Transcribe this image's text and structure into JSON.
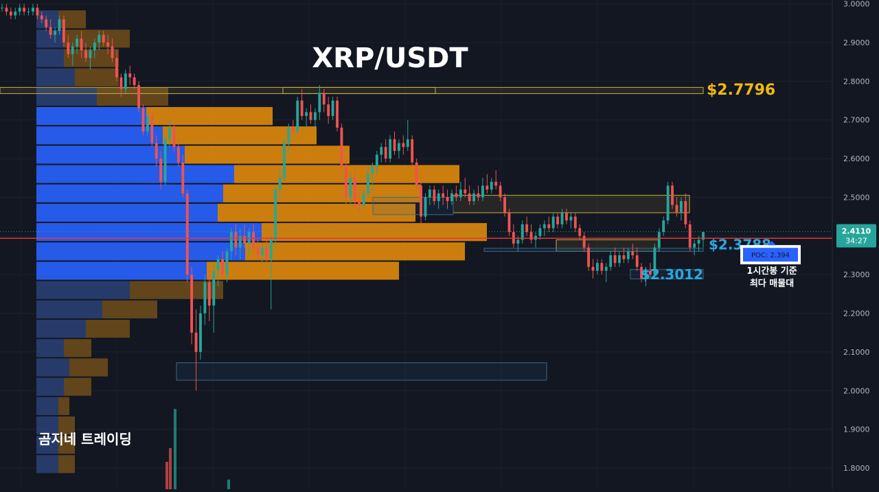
{
  "chart_data": {
    "type": "candlestick",
    "title": "XRP/USDT",
    "timeframe_note": "1시간봉 기준\n최다 매물대",
    "watermark": "곰지네 트레이딩",
    "y_axis": {
      "range": [
        1.745,
        3.01
      ],
      "ticks": [
        "3.0000",
        "2.9000",
        "2.8000",
        "2.7000",
        "2.6000",
        "2.5000",
        "2.4000",
        "2.3000",
        "2.2000",
        "2.1000",
        "2.0000",
        "1.9000",
        "1.8000"
      ]
    },
    "current_price": {
      "price": "2.4110",
      "countdown": "34:27",
      "value": 2.411,
      "color": "#26a69a"
    },
    "poc": {
      "label": "POC: 2.394",
      "value": 2.394,
      "color": "#e53935"
    },
    "levels": [
      {
        "label": "$2.7796",
        "value": 2.7796,
        "color": "#f0b90b"
      },
      {
        "label": "$2.3788",
        "value": 2.3788,
        "color": "#29a8e0"
      },
      {
        "label": "$2.3012",
        "value": 2.3012,
        "color": "#29a8e0"
      }
    ],
    "colors": {
      "up": "#26a69a",
      "down": "#ef5350",
      "profile_value_area_up": "#2962ff",
      "profile_value_area_down": "#e08a0b",
      "profile_outside_up": "#2a3f73",
      "profile_outside_down": "#6b4a1a",
      "background": "#131722"
    },
    "zones": [
      {
        "kind": "resistance",
        "top": 2.784,
        "bottom": 2.768,
        "color": "#c8b040"
      },
      {
        "kind": "resistance",
        "top": 2.505,
        "bottom": 2.46,
        "color": "#c8b040"
      },
      {
        "kind": "support",
        "top": 2.5,
        "bottom": 2.455,
        "color": "#3a6a8a"
      },
      {
        "kind": "resistance",
        "top": 2.39,
        "bottom": 2.36,
        "color": "#c8b040"
      },
      {
        "kind": "support",
        "top": 2.368,
        "bottom": 2.36,
        "color": "#3a6a8a"
      },
      {
        "kind": "support",
        "top": 2.313,
        "bottom": 2.289,
        "color": "#3a6a8a"
      },
      {
        "kind": "support",
        "top": 2.072,
        "bottom": 2.027,
        "color": "#3a6a8a"
      }
    ],
    "volume_profile": {
      "rows": [
        {
          "price": 2.96,
          "up": 0.04,
          "down": 0.05,
          "value_area": false
        },
        {
          "price": 2.91,
          "up": 0.05,
          "down": 0.12,
          "value_area": false
        },
        {
          "price": 2.86,
          "up": 0.05,
          "down": 0.1,
          "value_area": false
        },
        {
          "price": 2.81,
          "up": 0.07,
          "down": 0.08,
          "value_area": false
        },
        {
          "price": 2.76,
          "up": 0.11,
          "down": 0.13,
          "value_area": false
        },
        {
          "price": 2.71,
          "up": 0.2,
          "down": 0.23,
          "value_area": true
        },
        {
          "price": 2.66,
          "up": 0.23,
          "down": 0.28,
          "value_area": true
        },
        {
          "price": 2.61,
          "up": 0.27,
          "down": 0.3,
          "value_area": true
        },
        {
          "price": 2.56,
          "up": 0.36,
          "down": 0.41,
          "value_area": true
        },
        {
          "price": 2.51,
          "up": 0.34,
          "down": 0.36,
          "value_area": true
        },
        {
          "price": 2.46,
          "up": 0.33,
          "down": 0.36,
          "value_area": true
        },
        {
          "price": 2.41,
          "up": 0.41,
          "down": 0.41,
          "value_area": true
        },
        {
          "price": 2.36,
          "up": 0.38,
          "down": 0.4,
          "value_area": true
        },
        {
          "price": 2.31,
          "up": 0.31,
          "down": 0.35,
          "value_area": true
        },
        {
          "price": 2.26,
          "up": 0.17,
          "down": 0.17,
          "value_area": false
        },
        {
          "price": 2.21,
          "up": 0.12,
          "down": 0.1,
          "value_area": false
        },
        {
          "price": 2.16,
          "up": 0.09,
          "down": 0.08,
          "value_area": false
        },
        {
          "price": 2.11,
          "up": 0.05,
          "down": 0.05,
          "value_area": false
        },
        {
          "price": 2.06,
          "up": 0.06,
          "down": 0.07,
          "value_area": false
        },
        {
          "price": 2.01,
          "up": 0.05,
          "down": 0.05,
          "value_area": false
        },
        {
          "price": 1.96,
          "up": 0.04,
          "down": 0.02,
          "value_area": false
        },
        {
          "price": 1.91,
          "up": 0.04,
          "down": 0.03,
          "value_area": false
        },
        {
          "price": 1.86,
          "up": 0.04,
          "down": 0.03,
          "value_area": false
        },
        {
          "price": 1.81,
          "up": 0.04,
          "down": 0.03,
          "value_area": false
        }
      ]
    },
    "candles": [
      [
        2.99,
        3.0,
        2.98,
        2.99
      ],
      [
        2.99,
        3.0,
        2.97,
        2.98
      ],
      [
        2.98,
        2.99,
        2.96,
        2.97
      ],
      [
        2.97,
        2.99,
        2.96,
        2.98
      ],
      [
        2.98,
        3.0,
        2.97,
        2.99
      ],
      [
        2.99,
        3.0,
        2.97,
        2.98
      ],
      [
        2.98,
        2.99,
        2.97,
        2.98
      ],
      [
        2.98,
        3.0,
        2.97,
        2.99
      ],
      [
        2.99,
        3.0,
        2.96,
        2.97
      ],
      [
        2.97,
        2.98,
        2.95,
        2.96
      ],
      [
        2.96,
        2.97,
        2.93,
        2.94
      ],
      [
        2.94,
        2.96,
        2.91,
        2.92
      ],
      [
        2.92,
        2.94,
        2.9,
        2.93
      ],
      [
        2.93,
        2.97,
        2.92,
        2.96
      ],
      [
        2.96,
        2.97,
        2.89,
        2.9
      ],
      [
        2.9,
        2.92,
        2.86,
        2.87
      ],
      [
        2.87,
        2.9,
        2.84,
        2.89
      ],
      [
        2.89,
        2.92,
        2.87,
        2.91
      ],
      [
        2.91,
        2.93,
        2.86,
        2.88
      ],
      [
        2.88,
        2.9,
        2.85,
        2.86
      ],
      [
        2.86,
        2.89,
        2.83,
        2.88
      ],
      [
        2.88,
        2.91,
        2.86,
        2.9
      ],
      [
        2.9,
        2.93,
        2.88,
        2.92
      ],
      [
        2.92,
        2.93,
        2.89,
        2.9
      ],
      [
        2.9,
        2.92,
        2.87,
        2.89
      ],
      [
        2.89,
        2.91,
        2.85,
        2.86
      ],
      [
        2.86,
        2.88,
        2.8,
        2.81
      ],
      [
        2.81,
        2.82,
        2.76,
        2.78
      ],
      [
        2.78,
        2.83,
        2.77,
        2.82
      ],
      [
        2.82,
        2.84,
        2.79,
        2.81
      ],
      [
        2.81,
        2.82,
        2.78,
        2.79
      ],
      [
        2.79,
        2.8,
        2.72,
        2.73
      ],
      [
        2.73,
        2.74,
        2.66,
        2.67
      ],
      [
        2.67,
        2.72,
        2.66,
        2.71
      ],
      [
        2.71,
        2.72,
        2.63,
        2.64
      ],
      [
        2.64,
        2.66,
        2.58,
        2.6
      ],
      [
        2.6,
        2.62,
        2.52,
        2.54
      ],
      [
        2.54,
        2.66,
        2.53,
        2.65
      ],
      [
        2.65,
        2.7,
        2.63,
        2.68
      ],
      [
        2.68,
        2.69,
        2.62,
        2.63
      ],
      [
        2.63,
        2.65,
        2.58,
        2.59
      ],
      [
        2.59,
        2.61,
        2.5,
        2.51
      ],
      [
        2.51,
        2.52,
        2.28,
        2.3
      ],
      [
        2.3,
        2.32,
        2.12,
        2.15
      ],
      [
        2.15,
        2.21,
        2.0,
        2.1
      ],
      [
        2.1,
        2.22,
        2.08,
        2.2
      ],
      [
        2.2,
        2.3,
        2.17,
        2.28
      ],
      [
        2.28,
        2.31,
        2.18,
        2.22
      ],
      [
        2.22,
        2.33,
        2.15,
        2.31
      ],
      [
        2.31,
        2.35,
        2.27,
        2.34
      ],
      [
        2.34,
        2.36,
        2.29,
        2.3
      ],
      [
        2.3,
        2.37,
        2.28,
        2.36
      ],
      [
        2.36,
        2.42,
        2.34,
        2.41
      ],
      [
        2.41,
        2.43,
        2.35,
        2.37
      ],
      [
        2.37,
        2.42,
        2.34,
        2.4
      ],
      [
        2.4,
        2.43,
        2.37,
        2.38
      ],
      [
        2.38,
        2.42,
        2.35,
        2.41
      ],
      [
        2.41,
        2.43,
        2.36,
        2.37
      ],
      [
        2.37,
        2.39,
        2.34,
        2.35
      ],
      [
        2.35,
        2.38,
        2.33,
        2.37
      ],
      [
        2.37,
        2.4,
        2.33,
        2.34
      ],
      [
        2.34,
        2.4,
        2.21,
        2.39
      ],
      [
        2.39,
        2.53,
        2.37,
        2.52
      ],
      [
        2.52,
        2.57,
        2.5,
        2.55
      ],
      [
        2.55,
        2.65,
        2.54,
        2.64
      ],
      [
        2.64,
        2.69,
        2.62,
        2.68
      ],
      [
        2.68,
        2.7,
        2.66,
        2.67
      ],
      [
        2.67,
        2.76,
        2.66,
        2.75
      ],
      [
        2.75,
        2.78,
        2.7,
        2.71
      ],
      [
        2.71,
        2.73,
        2.68,
        2.72
      ],
      [
        2.72,
        2.74,
        2.69,
        2.7
      ],
      [
        2.7,
        2.73,
        2.68,
        2.72
      ],
      [
        2.72,
        2.79,
        2.7,
        2.77
      ],
      [
        2.77,
        2.78,
        2.72,
        2.74
      ],
      [
        2.74,
        2.76,
        2.69,
        2.71
      ],
      [
        2.71,
        2.76,
        2.7,
        2.75
      ],
      [
        2.75,
        2.76,
        2.67,
        2.68
      ],
      [
        2.68,
        2.69,
        2.57,
        2.58
      ],
      [
        2.58,
        2.6,
        2.48,
        2.5
      ],
      [
        2.5,
        2.56,
        2.48,
        2.55
      ],
      [
        2.55,
        2.57,
        2.47,
        2.49
      ],
      [
        2.49,
        2.51,
        2.46,
        2.48
      ],
      [
        2.48,
        2.52,
        2.47,
        2.51
      ],
      [
        2.51,
        2.58,
        2.5,
        2.56
      ],
      [
        2.56,
        2.59,
        2.52,
        2.58
      ],
      [
        2.58,
        2.62,
        2.56,
        2.61
      ],
      [
        2.61,
        2.64,
        2.59,
        2.63
      ],
      [
        2.63,
        2.65,
        2.59,
        2.6
      ],
      [
        2.6,
        2.66,
        2.59,
        2.65
      ],
      [
        2.65,
        2.67,
        2.61,
        2.62
      ],
      [
        2.62,
        2.65,
        2.6,
        2.64
      ],
      [
        2.64,
        2.66,
        2.61,
        2.63
      ],
      [
        2.63,
        2.7,
        2.62,
        2.65
      ],
      [
        2.65,
        2.66,
        2.58,
        2.59
      ],
      [
        2.59,
        2.6,
        2.52,
        2.53
      ],
      [
        2.53,
        2.55,
        2.43,
        2.45
      ],
      [
        2.45,
        2.51,
        2.44,
        2.5
      ],
      [
        2.5,
        2.53,
        2.48,
        2.52
      ],
      [
        2.52,
        2.53,
        2.48,
        2.49
      ],
      [
        2.49,
        2.52,
        2.47,
        2.51
      ],
      [
        2.51,
        2.53,
        2.48,
        2.5
      ],
      [
        2.5,
        2.52,
        2.47,
        2.49
      ],
      [
        2.49,
        2.52,
        2.48,
        2.51
      ],
      [
        2.51,
        2.53,
        2.49,
        2.5
      ],
      [
        2.5,
        2.54,
        2.49,
        2.52
      ],
      [
        2.52,
        2.55,
        2.5,
        2.51
      ],
      [
        2.51,
        2.53,
        2.48,
        2.49
      ],
      [
        2.49,
        2.52,
        2.48,
        2.51
      ],
      [
        2.51,
        2.53,
        2.49,
        2.5
      ],
      [
        2.5,
        2.55,
        2.49,
        2.53
      ],
      [
        2.53,
        2.56,
        2.51,
        2.52
      ],
      [
        2.52,
        2.55,
        2.51,
        2.54
      ],
      [
        2.54,
        2.57,
        2.52,
        2.53
      ],
      [
        2.53,
        2.54,
        2.49,
        2.5
      ],
      [
        2.5,
        2.51,
        2.45,
        2.46
      ],
      [
        2.46,
        2.47,
        2.4,
        2.41
      ],
      [
        2.41,
        2.43,
        2.37,
        2.38
      ],
      [
        2.38,
        2.4,
        2.36,
        2.39
      ],
      [
        2.39,
        2.44,
        2.38,
        2.43
      ],
      [
        2.43,
        2.45,
        2.4,
        2.41
      ],
      [
        2.41,
        2.43,
        2.38,
        2.39
      ],
      [
        2.39,
        2.41,
        2.37,
        2.4
      ],
      [
        2.4,
        2.43,
        2.39,
        2.42
      ],
      [
        2.42,
        2.44,
        2.4,
        2.43
      ],
      [
        2.43,
        2.45,
        2.41,
        2.42
      ],
      [
        2.42,
        2.46,
        2.41,
        2.45
      ],
      [
        2.45,
        2.46,
        2.42,
        2.43
      ],
      [
        2.43,
        2.47,
        2.42,
        2.46
      ],
      [
        2.46,
        2.47,
        2.43,
        2.44
      ],
      [
        2.44,
        2.46,
        2.42,
        2.45
      ],
      [
        2.45,
        2.46,
        2.41,
        2.42
      ],
      [
        2.42,
        2.43,
        2.39,
        2.4
      ],
      [
        2.4,
        2.41,
        2.36,
        2.37
      ],
      [
        2.37,
        2.38,
        2.31,
        2.32
      ],
      [
        2.32,
        2.34,
        2.29,
        2.31
      ],
      [
        2.31,
        2.34,
        2.3,
        2.33
      ],
      [
        2.33,
        2.34,
        2.3,
        2.31
      ],
      [
        2.31,
        2.33,
        2.28,
        2.32
      ],
      [
        2.32,
        2.36,
        2.31,
        2.35
      ],
      [
        2.35,
        2.37,
        2.32,
        2.33
      ],
      [
        2.33,
        2.36,
        2.32,
        2.35
      ],
      [
        2.35,
        2.37,
        2.33,
        2.34
      ],
      [
        2.34,
        2.37,
        2.33,
        2.36
      ],
      [
        2.36,
        2.38,
        2.34,
        2.35
      ],
      [
        2.35,
        2.37,
        2.31,
        2.32
      ],
      [
        2.32,
        2.33,
        2.28,
        2.29
      ],
      [
        2.29,
        2.32,
        2.27,
        2.31
      ],
      [
        2.31,
        2.33,
        2.29,
        2.3
      ],
      [
        2.3,
        2.38,
        2.29,
        2.37
      ],
      [
        2.37,
        2.42,
        2.36,
        2.41
      ],
      [
        2.41,
        2.45,
        2.4,
        2.44
      ],
      [
        2.44,
        2.54,
        2.43,
        2.53
      ],
      [
        2.53,
        2.54,
        2.47,
        2.48
      ],
      [
        2.48,
        2.5,
        2.45,
        2.46
      ],
      [
        2.46,
        2.5,
        2.44,
        2.49
      ],
      [
        2.49,
        2.51,
        2.42,
        2.43
      ],
      [
        2.43,
        2.44,
        2.36,
        2.37
      ],
      [
        2.37,
        2.39,
        2.35,
        2.38
      ],
      [
        2.38,
        2.4,
        2.36,
        2.39
      ],
      [
        2.39,
        2.41,
        2.37,
        2.41
      ]
    ]
  }
}
